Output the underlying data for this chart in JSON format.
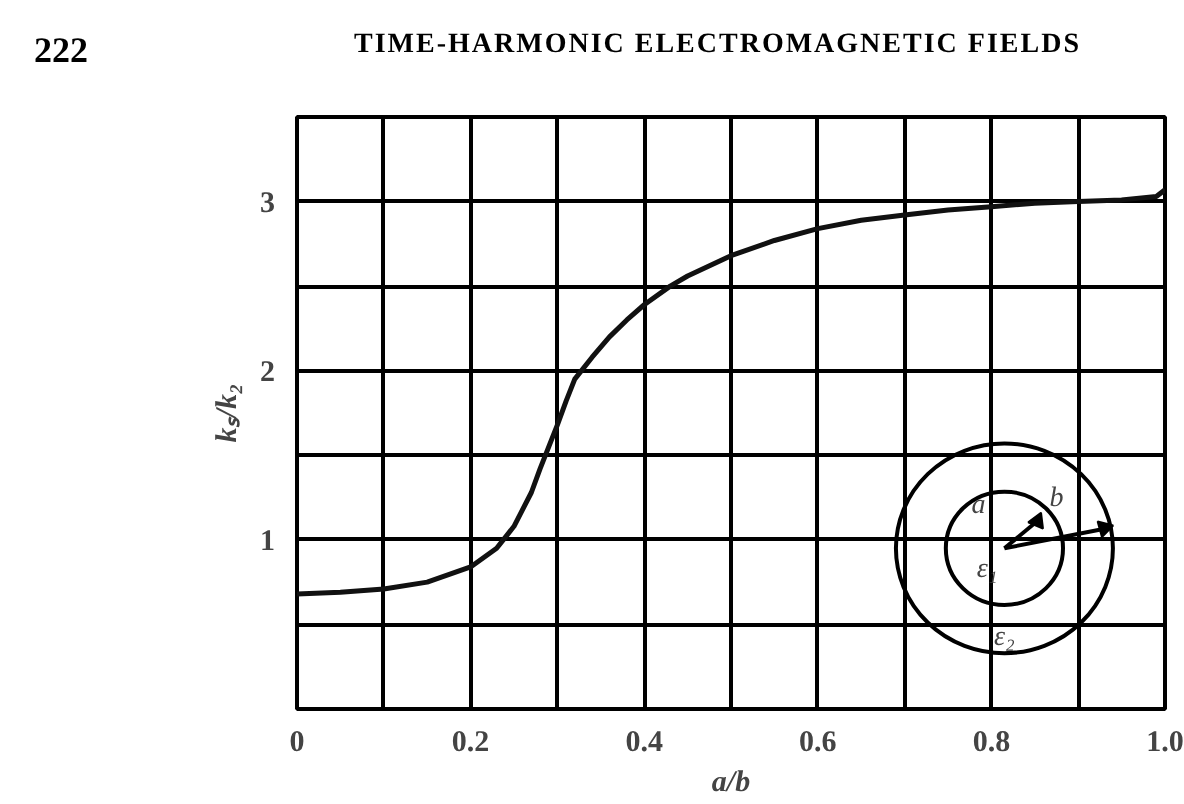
{
  "chart_data": {
    "type": "line",
    "title": "TIME-HARMONIC ELECTROMAGNETIC FIELDS",
    "xlabel": "a/b",
    "ylabel": "kₛ/k₂",
    "annotations": [
      "222",
      "a",
      "b",
      "ε₁",
      "ε₂"
    ],
    "x": [
      0,
      0.05,
      0.1,
      0.15,
      0.2,
      0.23,
      0.25,
      0.27,
      0.28,
      0.29,
      0.3,
      0.31,
      0.32,
      0.34,
      0.36,
      0.38,
      0.4,
      0.43,
      0.45,
      0.5,
      0.55,
      0.6,
      0.65,
      0.7,
      0.75,
      0.8,
      0.85,
      0.9,
      0.95,
      0.99,
      1.0
    ],
    "series": [
      {
        "color": "#111111",
        "values": [
          0.68,
          0.69,
          0.71,
          0.75,
          0.84,
          0.95,
          1.08,
          1.28,
          1.42,
          1.55,
          1.68,
          1.82,
          1.95,
          2.08,
          2.2,
          2.3,
          2.39,
          2.5,
          2.56,
          2.68,
          2.77,
          2.84,
          2.89,
          2.92,
          2.95,
          2.97,
          2.99,
          3.0,
          3.01,
          3.03,
          3.07
        ]
      }
    ],
    "xlim": [
      0,
      1.0
    ],
    "ylim": [
      0,
      3.5
    ],
    "xticks": [
      0,
      {
        "value": 0.1,
        "label": null
      },
      0.2,
      {
        "value": 0.3,
        "label": null
      },
      0.4,
      {
        "value": 0.5,
        "label": null
      },
      0.6,
      {
        "value": 0.7,
        "label": null
      },
      0.8,
      {
        "value": 0.9,
        "label": null
      },
      {
        "value": 1.0,
        "label": "1.0"
      }
    ],
    "yticks": [
      {
        "value": 0,
        "label": null
      },
      {
        "value": 0.5,
        "label": null
      },
      1,
      {
        "value": 1.5,
        "label": null
      },
      2,
      {
        "value": 2.5,
        "label": null
      },
      3,
      {
        "value": 3.5,
        "label": null
      }
    ],
    "grid": true,
    "marker": "none",
    "line_style": "solid"
  }
}
